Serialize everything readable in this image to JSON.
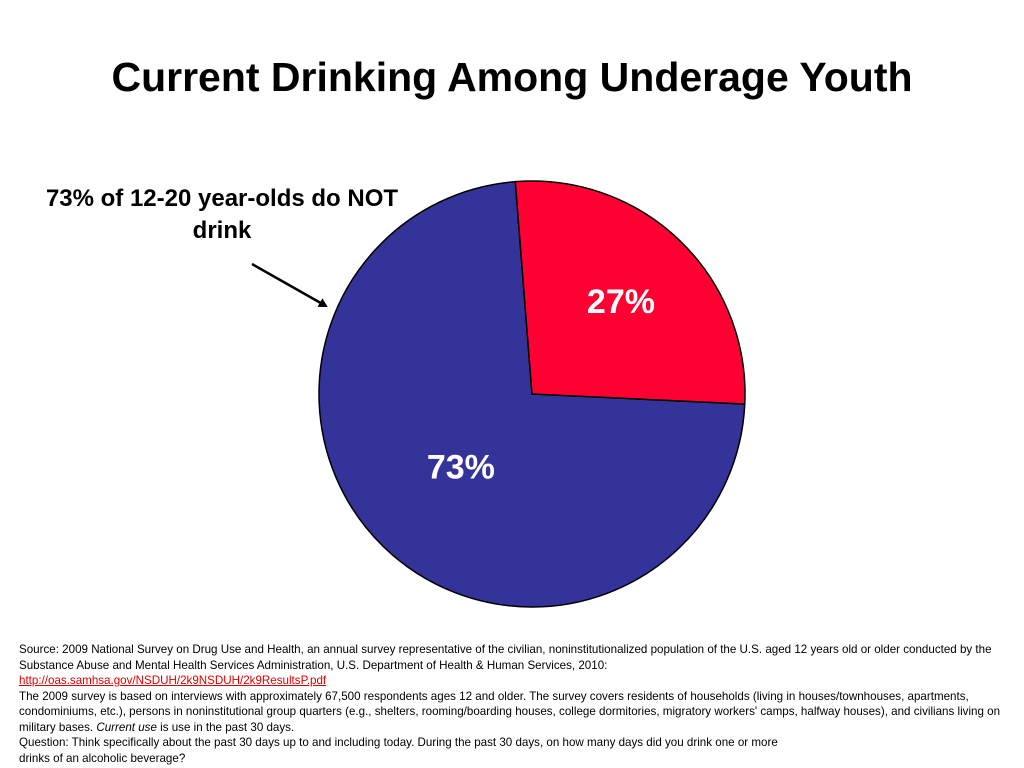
{
  "title": "Current Drinking Among Underage Youth",
  "callout": "73% of 12-20 year-olds do NOT drink",
  "chart_data": {
    "type": "pie",
    "title": "Current Drinking Among Underage Youth",
    "slices": [
      {
        "label": "73%",
        "value": 73,
        "color": "#333399"
      },
      {
        "label": "27%",
        "value": 27,
        "color": "#ff0033"
      }
    ],
    "slice_border_color": "#000000",
    "label_color": "#ffffff"
  },
  "source": {
    "line1": "Source: 2009 National Survey on Drug Use and Health, an annual survey representative of the civilian, noninstitutionalized population of the U.S. aged 12 years old or older conducted by the Substance Abuse and Mental Health Services Administration, U.S. Department of Health & Human Services, 2010:",
    "url": "http://oas.samhsa.gov/NSDUH/2k9NSDUH/2k9ResultsP.pdf",
    "line2_pre": "The 2009 survey is based on interviews with approximately 67,500 respondents ages 12 and older. The survey covers residents of households (living in houses/townhouses, apartments, condominiums, etc.), persons in noninstitutional group quarters (e.g., shelters, rooming/boarding houses, college dormitories, migratory workers' camps, halfway houses), and civilians living on military bases.",
    "line2_em": "Current use",
    "line2_post": "is use in the past 30 days.",
    "line3": "Question: Think specifically about the past 30 days up to and including today. During the past 30 days, on how many days did you drink one or more",
    "line4": "drinks of an alcoholic beverage?"
  }
}
